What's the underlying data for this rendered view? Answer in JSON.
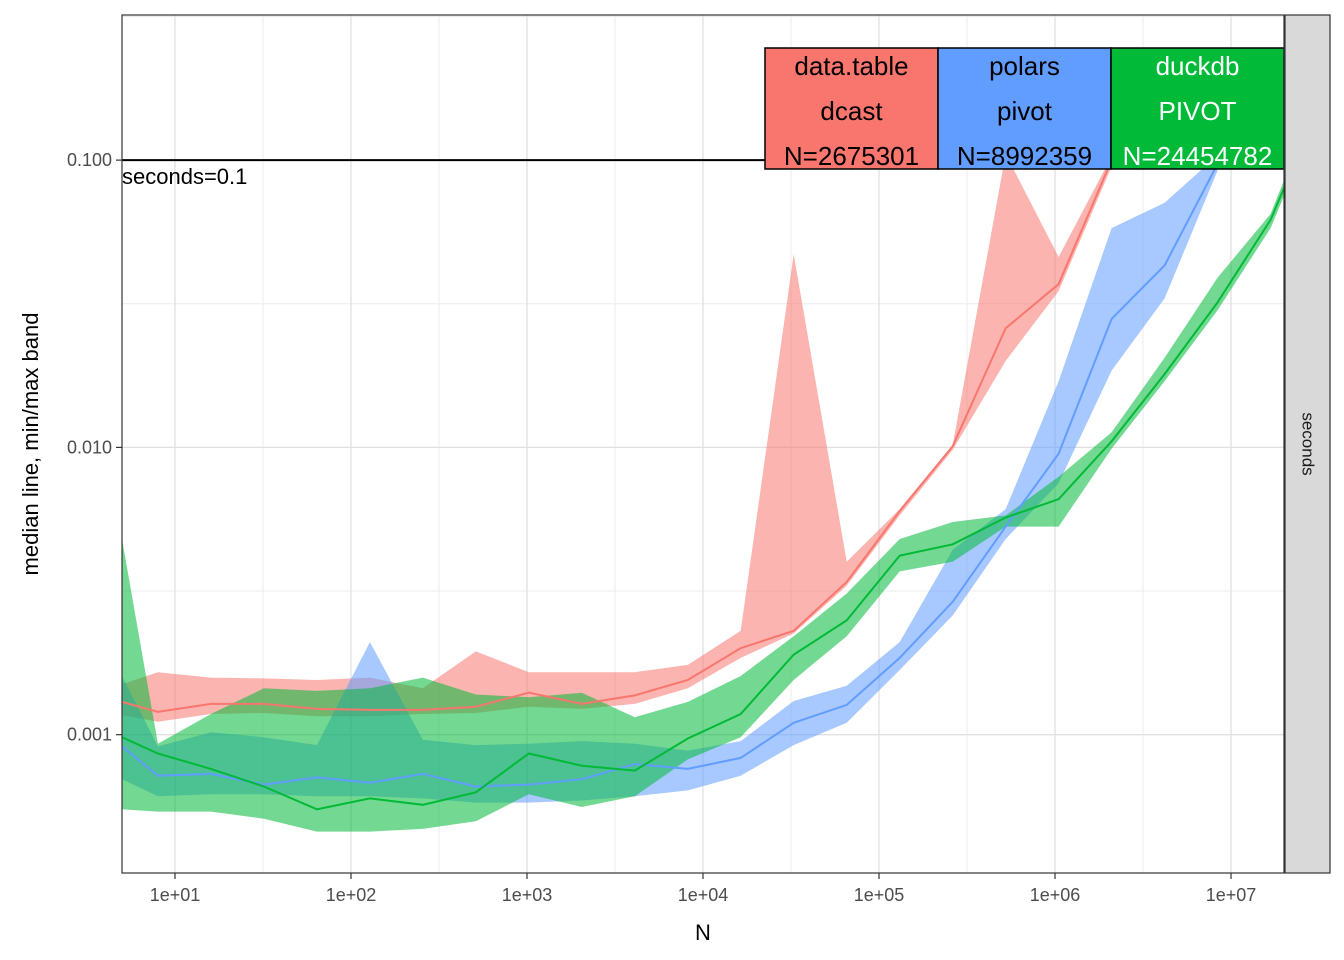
{
  "chart_data": {
    "type": "line",
    "xlabel": "N",
    "ylabel": "median line, min/max band",
    "facet_label": "seconds",
    "x_scale": "log10",
    "y_scale": "log10",
    "xlim": [
      5,
      20000000
    ],
    "ylim": [
      0.00033,
      0.32
    ],
    "grid": true,
    "x_ticks": [
      {
        "value": 10,
        "label": "1e+01"
      },
      {
        "value": 100,
        "label": "1e+02"
      },
      {
        "value": 1000,
        "label": "1e+03"
      },
      {
        "value": 10000,
        "label": "1e+04"
      },
      {
        "value": 100000,
        "label": "1e+05"
      },
      {
        "value": 1000000,
        "label": "1e+06"
      },
      {
        "value": 10000000,
        "label": "1e+07"
      }
    ],
    "y_ticks": [
      {
        "value": 0.001,
        "label": "0.001"
      },
      {
        "value": 0.01,
        "label": "0.010"
      },
      {
        "value": 0.1,
        "label": "0.100"
      }
    ],
    "reference_line": {
      "value": 0.1,
      "label": "seconds=0.1"
    },
    "series": [
      {
        "name": "data.table",
        "color": "#F8766D",
        "x": [
          5,
          8,
          16,
          32,
          64,
          128,
          256,
          512,
          1024,
          2048,
          4096,
          8192,
          16384,
          32768,
          65536,
          131072,
          262144,
          524288,
          1048576,
          2097152
        ],
        "median": [
          0.0013,
          0.0012,
          0.00128,
          0.00128,
          0.00123,
          0.00122,
          0.00122,
          0.00125,
          0.0014,
          0.00128,
          0.00137,
          0.00155,
          0.002,
          0.0023,
          0.0034,
          0.006,
          0.0101,
          0.026,
          0.037,
          0.1
        ],
        "min": [
          0.00117,
          0.00111,
          0.00118,
          0.00119,
          0.00116,
          0.00116,
          0.00118,
          0.00119,
          0.00125,
          0.00123,
          0.00128,
          0.00145,
          0.00185,
          0.00225,
          0.0033,
          0.0058,
          0.0098,
          0.02,
          0.035,
          0.095
        ],
        "max": [
          0.0015,
          0.00165,
          0.00158,
          0.00157,
          0.00155,
          0.00158,
          0.00145,
          0.00195,
          0.00165,
          0.00165,
          0.00165,
          0.00175,
          0.0023,
          0.047,
          0.004,
          0.0061,
          0.0102,
          0.105,
          0.046,
          0.103
        ]
      },
      {
        "name": "polars",
        "color": "#619CFF",
        "x": [
          5,
          8,
          16,
          32,
          64,
          128,
          256,
          512,
          1024,
          2048,
          4096,
          8192,
          16384,
          32768,
          65536,
          131072,
          262144,
          524288,
          1048576,
          2097152,
          4194304,
          8388608
        ],
        "median": [
          0.00091,
          0.00072,
          0.00073,
          0.00067,
          0.00071,
          0.00068,
          0.00073,
          0.00066,
          0.00067,
          0.0007,
          0.00079,
          0.00076,
          0.00083,
          0.0011,
          0.00127,
          0.00185,
          0.0029,
          0.0053,
          0.0095,
          0.028,
          0.043,
          0.097
        ],
        "min": [
          0.0007,
          0.00061,
          0.00062,
          0.00062,
          0.00061,
          0.00061,
          0.0006,
          0.00058,
          0.00058,
          0.00059,
          0.00061,
          0.00064,
          0.00072,
          0.00092,
          0.0011,
          0.00168,
          0.0026,
          0.0048,
          0.0075,
          0.0185,
          0.033,
          0.092
        ],
        "max": [
          0.0016,
          0.00091,
          0.00102,
          0.00098,
          0.00092,
          0.0021,
          0.00096,
          0.00092,
          0.00093,
          0.00095,
          0.00093,
          0.00088,
          0.00095,
          0.00131,
          0.00148,
          0.0021,
          0.0044,
          0.0061,
          0.017,
          0.058,
          0.071,
          0.104
        ]
      },
      {
        "name": "duckdb",
        "color": "#00BA38",
        "x": [
          5,
          8,
          16,
          32,
          64,
          128,
          256,
          512,
          1024,
          2048,
          4096,
          8192,
          16384,
          32768,
          65536,
          131072,
          262144,
          524288,
          1048576,
          2097152,
          4194304,
          8388608,
          16777216,
          20000000
        ],
        "median": [
          0.00098,
          0.00086,
          0.00076,
          0.00066,
          0.00055,
          0.0006,
          0.00057,
          0.00063,
          0.00086,
          0.00078,
          0.00075,
          0.00097,
          0.00118,
          0.0019,
          0.0025,
          0.0042,
          0.0046,
          0.0057,
          0.0066,
          0.0105,
          0.018,
          0.032,
          0.062,
          0.08
        ],
        "min": [
          0.00055,
          0.00054,
          0.00054,
          0.00051,
          0.00046,
          0.00046,
          0.00047,
          0.0005,
          0.00062,
          0.00056,
          0.00061,
          0.00082,
          0.00098,
          0.00155,
          0.0022,
          0.0037,
          0.004,
          0.0053,
          0.0053,
          0.0099,
          0.017,
          0.03,
          0.058,
          0.075
        ],
        "max": [
          0.0048,
          0.00093,
          0.00118,
          0.00145,
          0.00142,
          0.00145,
          0.00158,
          0.00138,
          0.00135,
          0.0014,
          0.00115,
          0.0013,
          0.0016,
          0.0022,
          0.0031,
          0.0048,
          0.0055,
          0.0058,
          0.0079,
          0.0113,
          0.0205,
          0.039,
          0.065,
          0.085
        ]
      }
    ],
    "labels": [
      {
        "series": "data.table",
        "lines": [
          "data.table",
          "dcast",
          "N=2675301"
        ],
        "point_x": 2675301,
        "text_color": "#000000"
      },
      {
        "series": "polars",
        "lines": [
          "polars",
          "pivot",
          "N=8992359"
        ],
        "point_x": 8992359,
        "text_color": "#000000"
      },
      {
        "series": "duckdb",
        "lines": [
          "duckdb",
          "PIVOT",
          "N=24454782"
        ],
        "point_x": 20000000,
        "text_color": "#ffffff"
      }
    ]
  }
}
